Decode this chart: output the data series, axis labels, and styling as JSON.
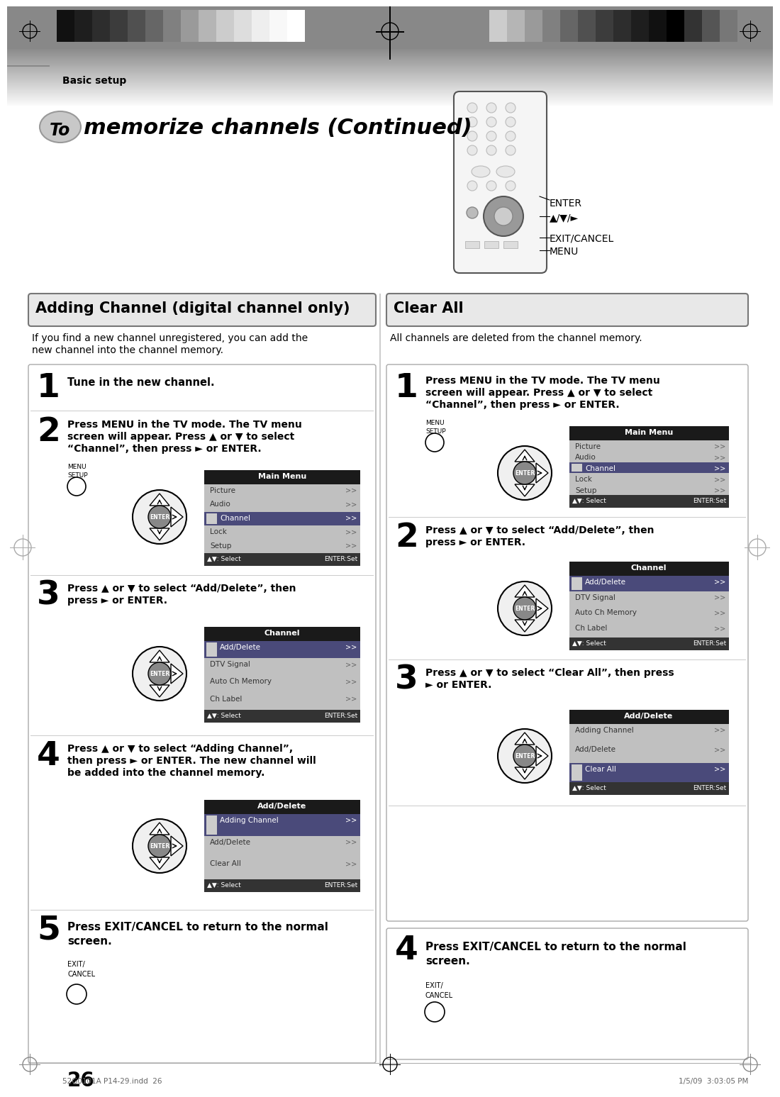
{
  "title_italic": "To memorize channels (Continued)",
  "section1_title": "Adding Channel (digital channel only)",
  "section2_title": "Clear All",
  "section1_desc1": "If you find a new channel unregistered, you can add the",
  "section1_desc2": "new channel into the channel memory.",
  "section2_desc": "All channels are deleted from the channel memory.",
  "bg_color": "#ffffff",
  "footer_text": "52G0101A P14-29.indd  26",
  "footer_right": "1/5/09  3:03:05 PM",
  "page_num": "26",
  "basic_setup": "Basic setup",
  "left_steps": [
    {
      "num": "1",
      "text": [
        "Tune in the new channel."
      ],
      "has_diagram": false
    },
    {
      "num": "2",
      "text": [
        "Press MENU in the TV mode. The TV menu",
        "screen will appear. Press ▲ or ▼ to select",
        "“Channel”, then press ► or ENTER."
      ],
      "has_diagram": true,
      "menu_title": "Main Menu",
      "menu_items": [
        "Picture",
        "Audio",
        "Channel",
        "Lock",
        "Setup"
      ],
      "menu_selected": 2,
      "has_menu_setup": true
    },
    {
      "num": "3",
      "text": [
        "Press ▲ or ▼ to select “Add/Delete”, then",
        "press ► or ENTER."
      ],
      "has_diagram": true,
      "menu_title": "Channel",
      "menu_items": [
        "Add/Delete",
        "DTV Signal",
        "Auto Ch Memory",
        "Ch Label"
      ],
      "menu_selected": 0
    },
    {
      "num": "4",
      "text": [
        "Press ▲ or ▼ to select “Adding Channel”,",
        "then press ► or ENTER. The new channel will",
        "be added into the channel memory."
      ],
      "has_diagram": true,
      "menu_title": "Add/Delete",
      "menu_items": [
        "Adding Channel",
        "Add/Delete",
        "Clear All"
      ],
      "menu_selected": 0
    },
    {
      "num": "5",
      "text": [
        "Press EXIT/CANCEL to return to the normal",
        "screen."
      ],
      "has_diagram": false,
      "has_exit": true
    }
  ],
  "right_steps": [
    {
      "num": "1",
      "text": [
        "Press MENU in the TV mode. The TV menu",
        "screen will appear. Press ▲ or ▼ to select",
        "“Channel”, then press ► or ENTER."
      ],
      "has_diagram": true,
      "menu_title": "Main Menu",
      "menu_items": [
        "Picture",
        "Audio",
        "Channel",
        "Lock",
        "Setup"
      ],
      "menu_selected": 2,
      "has_menu_setup": true
    },
    {
      "num": "2",
      "text": [
        "Press ▲ or ▼ to select “Add/Delete”, then",
        "press ► or ENTER."
      ],
      "has_diagram": true,
      "menu_title": "Channel",
      "menu_items": [
        "Add/Delete",
        "DTV Signal",
        "Auto Ch Memory",
        "Ch Label"
      ],
      "menu_selected": 0
    },
    {
      "num": "3",
      "text": [
        "Press ▲ or ▼ to select “Clear All”, then press",
        "► or ENTER."
      ],
      "has_diagram": true,
      "menu_title": "Add/Delete",
      "menu_items": [
        "Adding Channel",
        "Add/Delete",
        "Clear All"
      ],
      "menu_selected": 2
    },
    {
      "num": "4",
      "text": [
        "Press EXIT/CANCEL to return to the normal",
        "screen."
      ],
      "has_diagram": false,
      "has_exit": true
    }
  ]
}
